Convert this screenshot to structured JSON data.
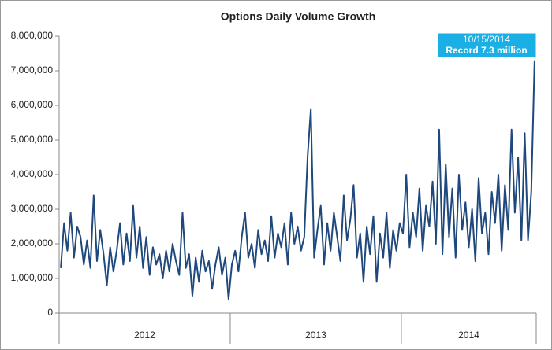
{
  "chart_data": {
    "type": "line",
    "title": "Options Daily Volume Growth",
    "color": "#1f497d",
    "groups": [
      {
        "name": "2012",
        "values": [
          1300000,
          2600000,
          1800000,
          2900000,
          1600000,
          2500000,
          2200000,
          1400000,
          2100000,
          1300000,
          3400000,
          1500000,
          2400000,
          1700000,
          800000,
          1900000,
          1200000,
          1800000,
          2600000,
          1400000,
          2300000,
          1500000,
          3100000,
          1600000,
          2500000,
          1300000,
          2200000,
          1100000,
          1900000,
          1400000,
          1700000,
          1000000,
          1800000,
          1200000,
          2000000,
          1500000,
          1100000,
          2900000,
          1300000,
          1700000,
          500000,
          1600000,
          900000,
          1800000,
          1200000,
          1500000,
          700000,
          1400000,
          1900000,
          1100000,
          1600000,
          400000
        ]
      },
      {
        "name": "2013",
        "values": [
          1400000,
          1800000,
          1200000,
          2200000,
          2900000,
          1600000,
          2000000,
          1300000,
          2400000,
          1700000,
          2100000,
          1500000,
          2800000,
          1600000,
          2300000,
          1900000,
          2600000,
          1400000,
          2900000,
          2000000,
          2500000,
          1800000,
          2200000,
          4500000,
          5900000,
          1600000,
          2400000,
          3100000,
          1400000,
          2600000,
          1800000,
          2900000,
          2200000,
          1500000,
          3400000,
          2100000,
          2700000,
          3700000,
          1600000,
          2300000,
          900000,
          2500000,
          1700000,
          2800000,
          900000,
          2300000,
          1600000,
          2900000,
          1300000,
          2400000,
          1800000,
          2600000
        ]
      },
      {
        "name": "2014",
        "values": [
          2300000,
          4000000,
          1900000,
          2900000,
          2200000,
          3600000,
          1800000,
          3100000,
          2500000,
          3800000,
          2000000,
          5300000,
          1700000,
          4300000,
          2200000,
          3600000,
          1600000,
          4000000,
          2400000,
          3200000,
          1900000,
          3000000,
          1500000,
          3900000,
          2300000,
          2900000,
          1700000,
          3500000,
          2600000,
          4000000,
          1800000,
          3700000,
          2400000,
          5300000,
          2900000,
          4500000,
          2100000,
          5200000,
          2100000,
          3500000,
          7300000
        ]
      }
    ],
    "ylim": [
      0,
      8000000
    ],
    "yticks": [
      0,
      {
        "value": 1000000,
        "label": "1,000,000"
      },
      {
        "value": 2000000,
        "label": "2,000,000"
      },
      {
        "value": 3000000,
        "label": "3,000,000"
      },
      {
        "value": 4000000,
        "label": "4,000,000"
      },
      {
        "value": 5000000,
        "label": "5,000,000"
      },
      {
        "value": 6000000,
        "label": "6,000,000"
      },
      {
        "value": 7000000,
        "label": "7,000,000"
      },
      {
        "value": 8000000,
        "label": "8,000,000"
      }
    ],
    "annotation": {
      "lines": [
        "10/15/2014",
        "Record 7.3 million"
      ],
      "color": "#1ab0e6"
    }
  }
}
